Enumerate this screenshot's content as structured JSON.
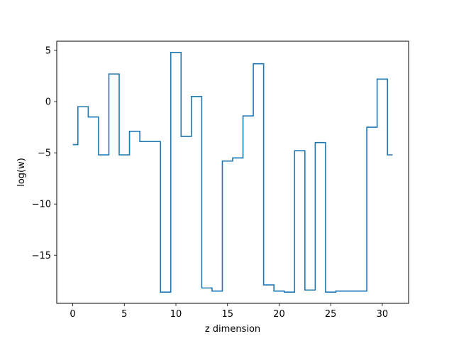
{
  "chart_data": {
    "type": "line",
    "drawstyle": "steps-mid",
    "title": "",
    "xlabel": "z dimension",
    "ylabel": "log(w)",
    "xlim": [
      -1.55,
      32.55
    ],
    "ylim": [
      -19.7,
      5.9
    ],
    "xticks": [
      0,
      5,
      10,
      15,
      20,
      25,
      30
    ],
    "yticks": [
      5,
      0,
      -5,
      -10,
      -15
    ],
    "grid": false,
    "line_color": "#1f77b4",
    "series": [
      {
        "x": [
          0,
          1,
          2,
          3,
          4,
          5,
          6,
          7,
          8,
          9,
          10,
          11,
          12,
          13,
          14,
          15,
          16,
          17,
          18,
          19,
          20,
          21,
          22,
          23,
          24,
          25,
          26,
          27,
          28,
          29,
          30,
          31
        ],
        "values": [
          -4.2,
          -0.5,
          -1.5,
          -5.2,
          2.7,
          -5.2,
          -2.9,
          -3.9,
          -3.9,
          -18.6,
          4.8,
          -3.4,
          0.5,
          -18.2,
          -18.5,
          -5.8,
          -5.5,
          -1.4,
          3.7,
          -17.9,
          -18.5,
          -18.6,
          -4.8,
          -18.4,
          -4.0,
          -18.6,
          -18.5,
          -18.5,
          -18.5,
          -2.5,
          2.2,
          -5.2
        ]
      }
    ]
  }
}
